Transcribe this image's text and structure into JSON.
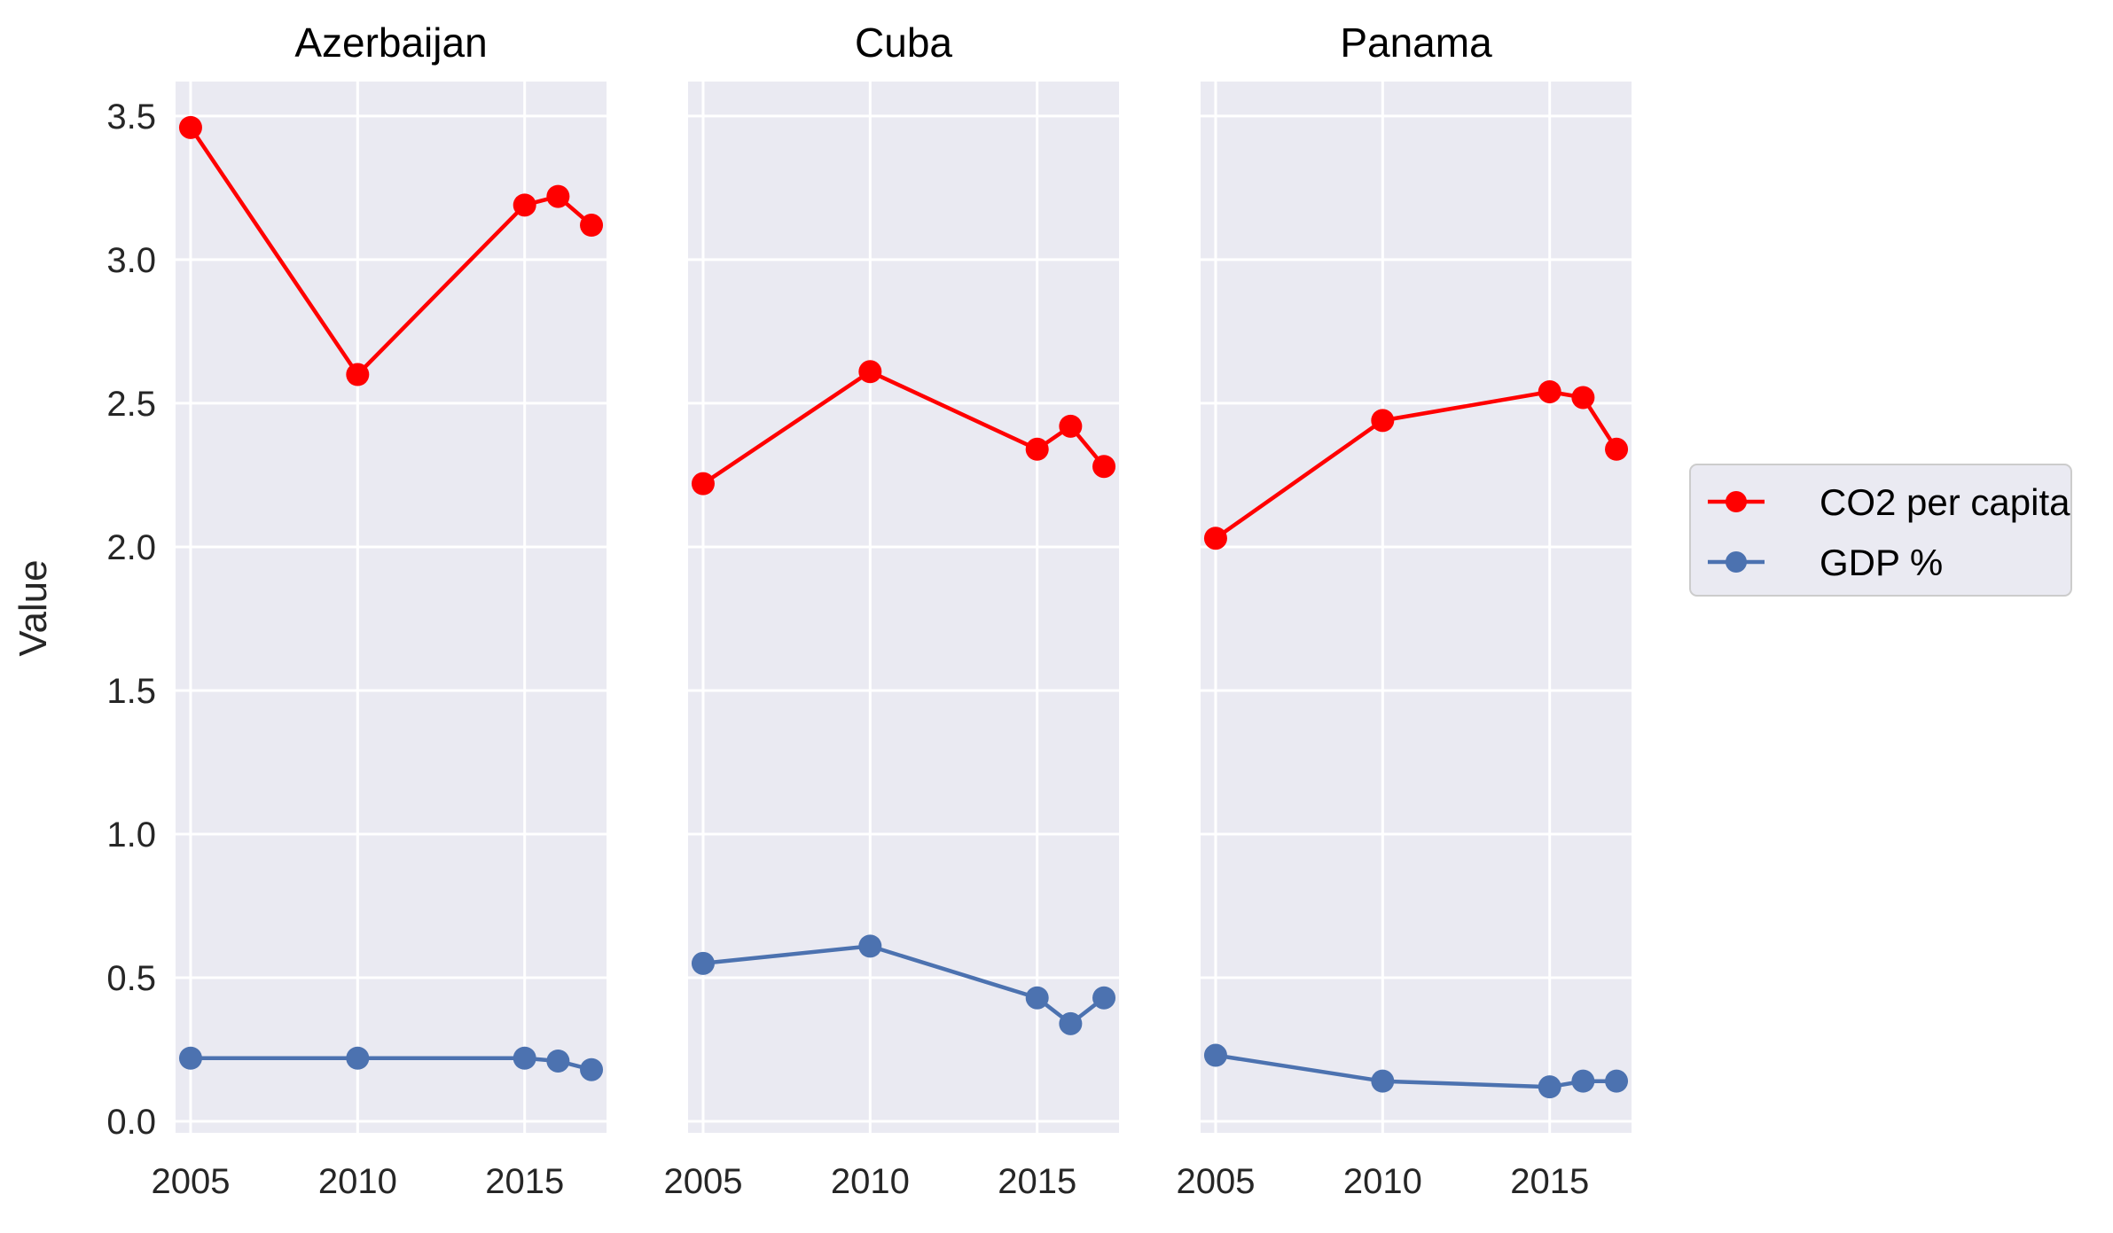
{
  "chart_data": {
    "type": "line",
    "ylabel": "Value",
    "ylim": [
      -0.04,
      3.62
    ],
    "xlim": [
      2004.55,
      2017.45
    ],
    "yticks": [
      0.0,
      0.5,
      1.0,
      1.5,
      2.0,
      2.5,
      3.0,
      3.5
    ],
    "ytick_labels": [
      "0.0",
      "0.5",
      "1.0",
      "1.5",
      "2.0",
      "2.5",
      "3.0",
      "3.5"
    ],
    "xticks": [
      2005,
      2010,
      2015
    ],
    "xtick_labels": [
      "2005",
      "2010",
      "2015"
    ],
    "colors": {
      "co2": "#FF0000",
      "gdp": "#4C72B0"
    },
    "legend": {
      "placement": "right",
      "entries": [
        {
          "name": "CO2 per capita",
          "color": "#FF0000"
        },
        {
          "name": "GDP %",
          "color": "#4C72B0"
        }
      ]
    },
    "panels": [
      {
        "title": "Azerbaijan",
        "x": [
          2005,
          2010,
          2015,
          2016,
          2017
        ],
        "series": [
          {
            "name": "CO2 per capita",
            "values": [
              3.46,
              2.6,
              3.19,
              3.22,
              3.12
            ]
          },
          {
            "name": "GDP %",
            "values": [
              0.22,
              0.22,
              0.22,
              0.21,
              0.18
            ]
          }
        ]
      },
      {
        "title": "Cuba",
        "x": [
          2005,
          2010,
          2015,
          2016,
          2017
        ],
        "series": [
          {
            "name": "CO2 per capita",
            "values": [
              2.22,
              2.61,
              2.34,
              2.42,
              2.28
            ]
          },
          {
            "name": "GDP %",
            "values": [
              0.55,
              0.61,
              0.43,
              0.34,
              0.43
            ]
          }
        ]
      },
      {
        "title": "Panama",
        "x": [
          2005,
          2010,
          2015,
          2016,
          2017
        ],
        "series": [
          {
            "name": "CO2 per capita",
            "values": [
              2.03,
              2.44,
              2.54,
              2.52,
              2.34
            ]
          },
          {
            "name": "GDP %",
            "values": [
              0.23,
              0.14,
              0.12,
              0.14,
              0.14
            ]
          }
        ]
      }
    ]
  }
}
